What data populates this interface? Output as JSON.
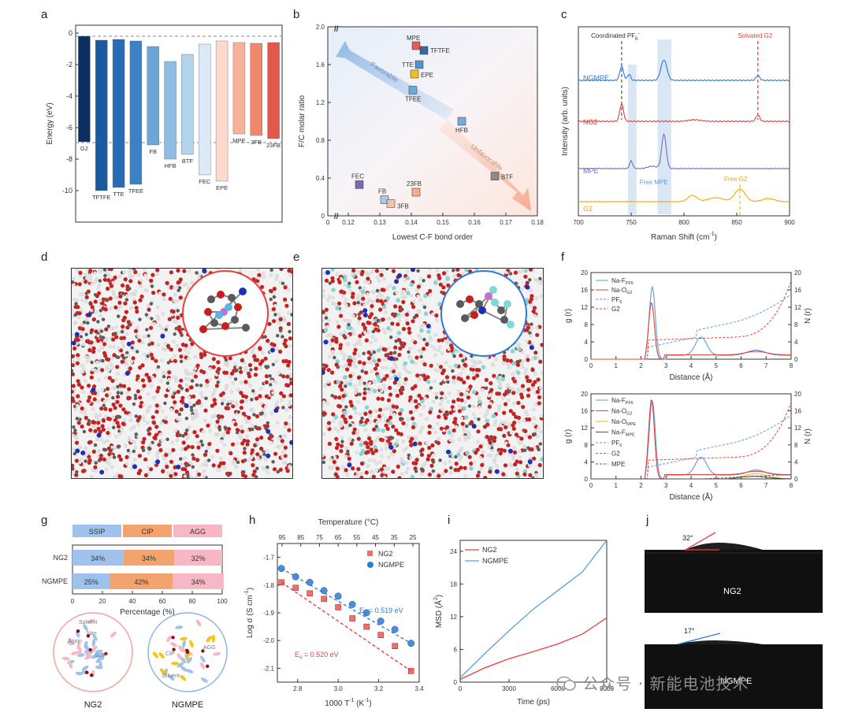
{
  "panels": {
    "a": "a",
    "b": "b",
    "c": "c",
    "d": "d",
    "e": "e",
    "f": "f",
    "g": "g",
    "h": "h",
    "i": "i",
    "j": "j"
  },
  "chart_data": [
    {
      "panel": "a",
      "type": "bar",
      "ylabel": "Energy (eV)",
      "ylim": [
        -12,
        0.5
      ],
      "yticks": [
        "0",
        "-2",
        "-4",
        "-6",
        "-8",
        "-10"
      ],
      "dashed_lines": [
        -0.2,
        -6.95
      ],
      "categories": [
        "G2",
        "TFTFE",
        "TTE",
        "TFEE",
        "FB",
        "HFB",
        "BTF",
        "FEC",
        "EPE",
        "MPE",
        "3FB",
        "23FB"
      ],
      "top": [
        -0.2,
        -0.45,
        -0.4,
        -0.5,
        -0.85,
        -1.8,
        -1.35,
        -0.7,
        -0.5,
        -0.6,
        -0.65,
        -0.6
      ],
      "bottom": [
        -6.9,
        -10.0,
        -9.8,
        -9.6,
        -7.1,
        -8.0,
        -7.7,
        -9.0,
        -9.4,
        -6.4,
        -6.5,
        -6.7
      ],
      "colors": [
        "#0b2f5e",
        "#1c5aa0",
        "#2a6bb5",
        "#3b82c4",
        "#6aa6d6",
        "#8fbde1",
        "#b3d2ec",
        "#dce9f6",
        "#fbd9cc",
        "#f7b29c",
        "#f0866b",
        "#e2584a"
      ]
    },
    {
      "panel": "b",
      "type": "scatter",
      "xlabel": "Lowest C-F bond order",
      "ylabel": "F/C molar ratio",
      "xlim": [
        0.1,
        0.18
      ],
      "ylim": [
        0,
        2.0
      ],
      "xticks": [
        "0",
        "0.12",
        "0.13",
        "0.14",
        "0.15",
        "0.16",
        "0.17",
        "0.18"
      ],
      "yticks": [
        "0",
        "0.4",
        "0.8",
        "1.2",
        "1.6",
        "2.0"
      ],
      "arrows": [
        "Favorable",
        "Unfavorable"
      ],
      "points": [
        {
          "label": "MPE",
          "x": 0.1415,
          "y": 1.8,
          "color": "#e8403c"
        },
        {
          "label": "TFTFE",
          "x": 0.144,
          "y": 1.75,
          "color": "#1a4f8f"
        },
        {
          "label": "TTE",
          "x": 0.1425,
          "y": 1.6,
          "color": "#3b82c4"
        },
        {
          "label": "EPE",
          "x": 0.141,
          "y": 1.5,
          "color": "#f5b400"
        },
        {
          "label": "TFEE",
          "x": 0.1405,
          "y": 1.33,
          "color": "#5aa0d8"
        },
        {
          "label": "HFB",
          "x": 0.156,
          "y": 1.0,
          "color": "#5aa0d8"
        },
        {
          "label": "BTF",
          "x": 0.1665,
          "y": 0.42,
          "color": "#7a7a7a"
        },
        {
          "label": "FEC",
          "x": 0.1235,
          "y": 0.33,
          "color": "#6a4fa0"
        },
        {
          "label": "23FB",
          "x": 0.1415,
          "y": 0.25,
          "color": "#f4a07c"
        },
        {
          "label": "FB",
          "x": 0.1315,
          "y": 0.17,
          "color": "#9cc3e8"
        },
        {
          "label": "3FB",
          "x": 0.1335,
          "y": 0.13,
          "color": "#f9b9a2"
        }
      ]
    },
    {
      "panel": "c",
      "type": "line",
      "xlabel": "Raman Shift (cm",
      "xlabel_unit_sup": "-1",
      "xlabel_close": ")",
      "ylabel": "Intensity (arb. units)",
      "xlim": [
        700,
        900
      ],
      "xticks": [
        "700",
        "750",
        "800",
        "850",
        "900"
      ],
      "annotations": [
        "Coordinated PF",
        "6",
        "-",
        "Solvated G2",
        "Free MPE",
        "Free G2"
      ],
      "series": [
        {
          "name": "NGMPE",
          "color": "#2c7bd6"
        },
        {
          "name": "NG2",
          "color": "#e8403c"
        },
        {
          "name": "MPE",
          "color": "#7b68c0"
        },
        {
          "name": "G2",
          "color": "#f5a800"
        }
      ]
    },
    {
      "panel": "f",
      "type": "line",
      "xlabel": "Distance (Å)",
      "ylabel_left": "g (r)",
      "ylabel_right": "N (r)",
      "xlim": [
        0,
        8
      ],
      "xticks": [
        "0",
        "1",
        "2",
        "3",
        "4",
        "5",
        "6",
        "7",
        "8"
      ],
      "y_left_ticks": [
        "0",
        "4",
        "8",
        "12",
        "16",
        "20"
      ],
      "y_right_ticks": [
        "0",
        "4",
        "8",
        "12",
        "16",
        "20"
      ],
      "upper_legend": [
        "Na-F",
        "PF6",
        "Na-O",
        "G2",
        "PF",
        "6",
        "G2"
      ],
      "lower_legend": [
        "Na-F",
        "PF6",
        "Na-O",
        "G2",
        "Na-O",
        "MPE",
        "Na-F",
        "MPE",
        "PF",
        "6",
        "G2",
        "MPE"
      ]
    },
    {
      "panel": "g",
      "type": "bar",
      "xlabel": "Percentage (%)",
      "legend": [
        "SSIP",
        "CIP",
        "AGG"
      ],
      "colors": [
        "#9fc2ec",
        "#f3a46e",
        "#f7b7c4"
      ],
      "categories": [
        "NG2",
        "NGMPE"
      ],
      "series": [
        {
          "name": "SSIP",
          "values": [
            34,
            25
          ],
          "labels": [
            "34%",
            "25%"
          ]
        },
        {
          "name": "CIP",
          "values": [
            34,
            42
          ],
          "labels": [
            "34%",
            "42%"
          ]
        },
        {
          "name": "AGG",
          "values": [
            32,
            34
          ],
          "labels": [
            "32%",
            "34%"
          ]
        }
      ],
      "xticks": [
        "0",
        "20",
        "40",
        "60",
        "80",
        "100"
      ],
      "schematic_labels": [
        "Solvent",
        "Na+",
        "Anion",
        "SSIP",
        "CIP",
        "AGG",
        "Diluent"
      ],
      "schematic_titles": [
        "NG2",
        "NGMPE"
      ]
    },
    {
      "panel": "h",
      "type": "scatter",
      "xlabel": "1000 T",
      "xlabel_sup": "-1",
      "xlabel_unit": " (K",
      "xlabel_unit_sup": "-1",
      "xlabel_close": ")",
      "ylabel": "Log σ (S cm",
      "ylabel_sup": "-1",
      "ylabel_close": ")",
      "toplabel": "Temperature (°C)",
      "xlim": [
        2.7,
        3.4
      ],
      "ylim": [
        -2.15,
        -1.65
      ],
      "xticks": [
        "2.8",
        "3.0",
        "3.2",
        "3.4"
      ],
      "yticks": [
        "-1.7",
        "-1.8",
        "-1.9",
        "-2.0",
        "-2.1"
      ],
      "topticks": [
        "95",
        "85",
        "75",
        "65",
        "55",
        "45",
        "35",
        "25"
      ],
      "series": [
        {
          "name": "NG2",
          "color": "#e8403c",
          "Ea_prefix": "E",
          "Ea_sub": "a",
          "Ea_value": " = 0.520 eV",
          "x": [
            2.72,
            2.79,
            2.86,
            2.93,
            3.0,
            3.07,
            3.14,
            3.21,
            3.28,
            3.36
          ],
          "y": [
            -1.79,
            -1.81,
            -1.83,
            -1.85,
            -1.88,
            -1.92,
            -1.95,
            -1.98,
            -2.02,
            -2.11
          ]
        },
        {
          "name": "NGMPE",
          "color": "#2c7bd6",
          "Ea_prefix": "E",
          "Ea_sub": "a",
          "Ea_value": " = 0.519 eV",
          "x": [
            2.72,
            2.79,
            2.86,
            2.93,
            3.0,
            3.07,
            3.14,
            3.21,
            3.28,
            3.36
          ],
          "y": [
            -1.74,
            -1.77,
            -1.79,
            -1.82,
            -1.84,
            -1.87,
            -1.9,
            -1.93,
            -1.96,
            -2.01
          ]
        }
      ]
    },
    {
      "panel": "i",
      "type": "line",
      "xlabel": "Time (ps)",
      "ylabel": "MSD (Å",
      "ylabel_sup": "2",
      "ylabel_close": ")",
      "xlim": [
        0,
        9000
      ],
      "ylim": [
        0,
        26
      ],
      "xticks": [
        "0",
        "3000",
        "6000",
        "9000"
      ],
      "yticks": [
        "0",
        "6",
        "12",
        "18",
        "24"
      ],
      "series": [
        {
          "name": "NG2",
          "color": "#e8403c",
          "x": [
            0,
            1500,
            3000,
            4500,
            6000,
            7500,
            9000
          ],
          "y": [
            0.5,
            2.6,
            4.3,
            5.6,
            7.0,
            8.8,
            11.8
          ]
        },
        {
          "name": "NGMPE",
          "color": "#5aa0d8",
          "x": [
            0,
            1500,
            3000,
            4500,
            6000,
            7500,
            9000
          ],
          "y": [
            0.8,
            5.2,
            9.4,
            13.4,
            16.8,
            20.2,
            26
          ]
        }
      ]
    }
  ],
  "panel_j": {
    "angles": [
      "32°",
      "17°"
    ],
    "labels": [
      "NG2",
      "NGMPE"
    ]
  },
  "watermark": "公众号 · 新能电池技术"
}
